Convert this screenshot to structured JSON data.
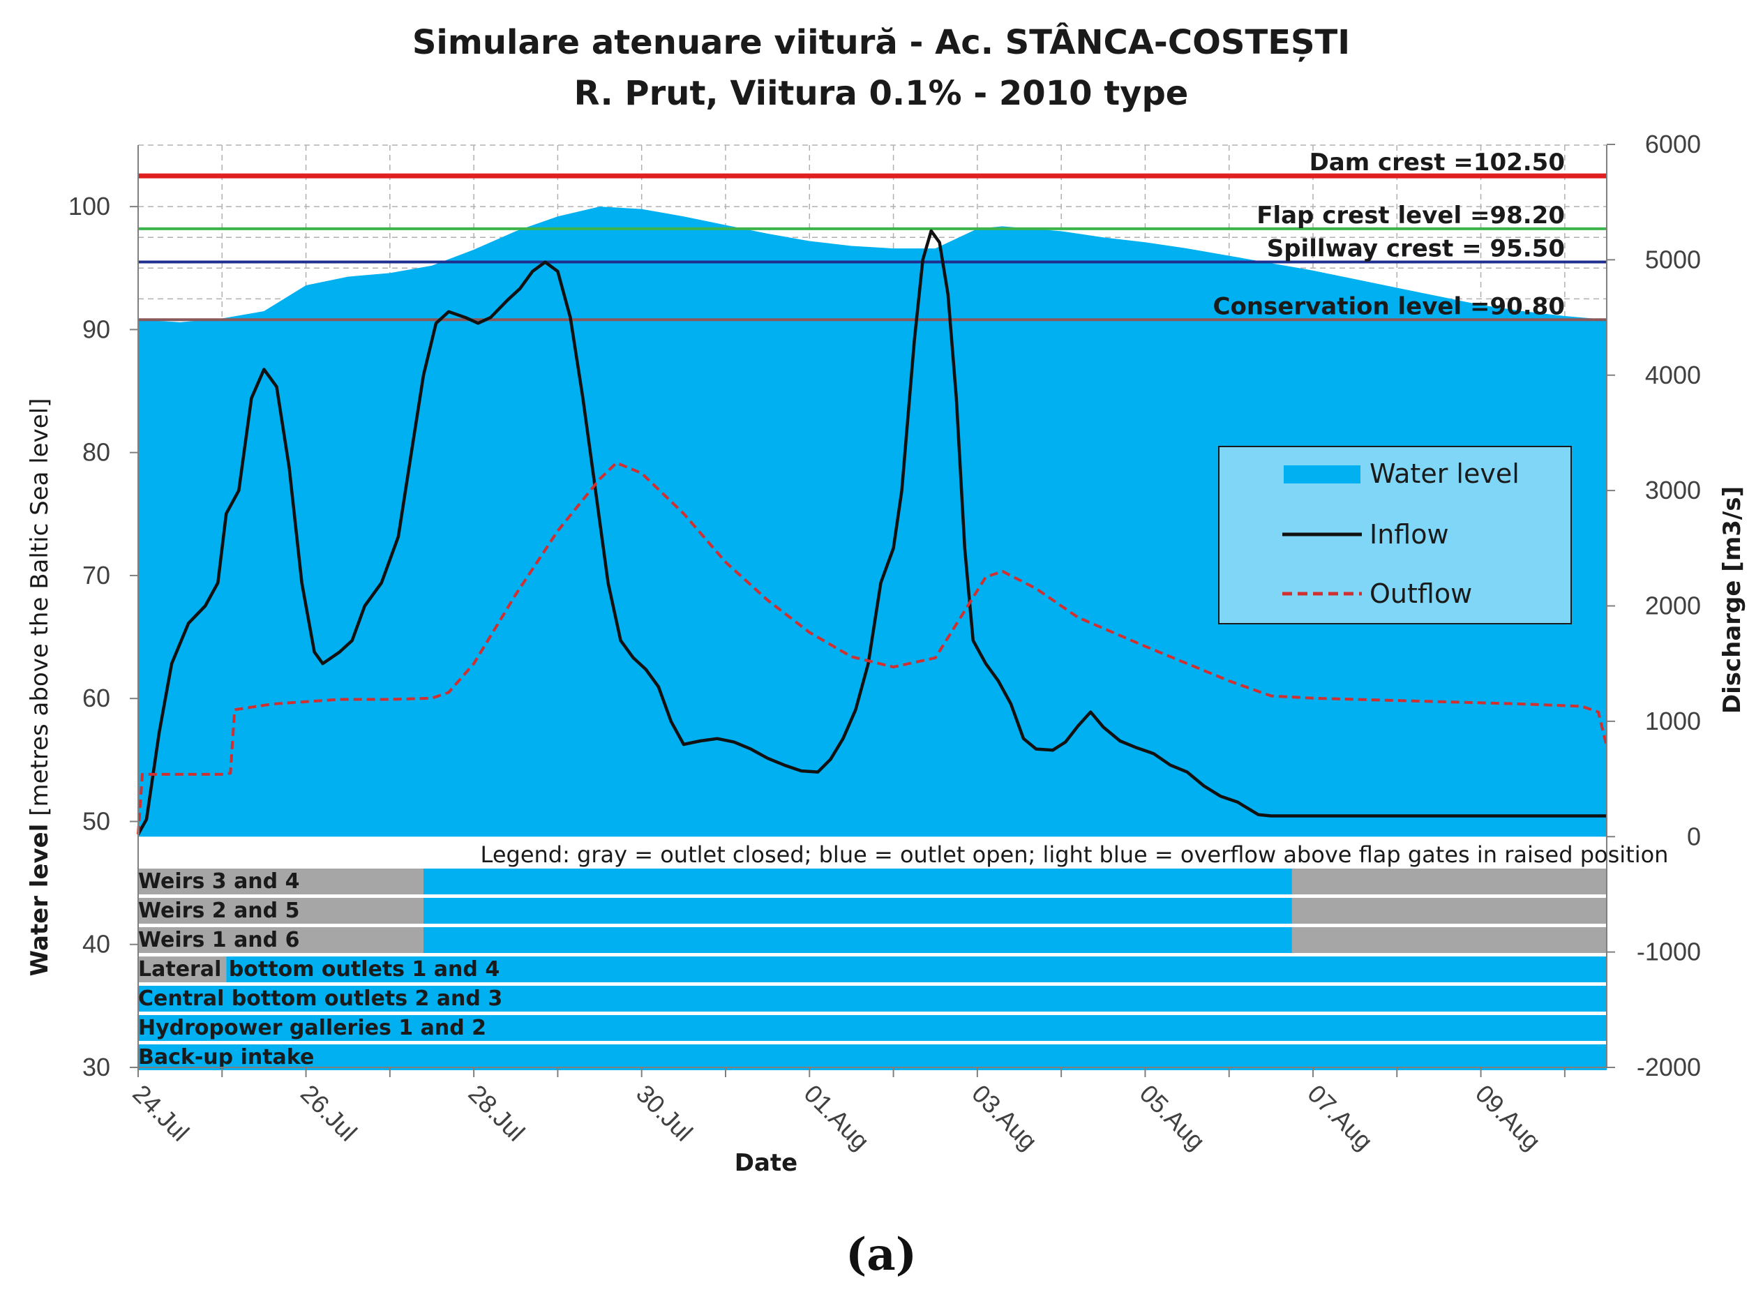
{
  "chart_data": {
    "type": "area+line",
    "title_line1": "Simulare atenuare viitură - Ac. STÂNCA-COSTEȘTI",
    "title_line2": "R. Prut,  Viitura 0.1% - 2010 type",
    "xlabel": "Date",
    "ylabel_bold": "Water level",
    "ylabel_rest": " [metres above the Baltic Sea level]",
    "y2label": "Discharge [m3/s]",
    "x_range_days": [
      0,
      17.5
    ],
    "ylim": [
      30,
      105
    ],
    "y2lim": [
      -2000,
      6000
    ],
    "x_ticks": [
      {
        "day": 0,
        "label": "24.Jul"
      },
      {
        "day": 2,
        "label": "26.Jul"
      },
      {
        "day": 4,
        "label": "28.Jul"
      },
      {
        "day": 6,
        "label": "30.Jul"
      },
      {
        "day": 8,
        "label": "01.Aug"
      },
      {
        "day": 10,
        "label": "03.Aug"
      },
      {
        "day": 12,
        "label": "05.Aug"
      },
      {
        "day": 14,
        "label": "07.Aug"
      },
      {
        "day": 16,
        "label": "09.Aug"
      }
    ],
    "y_ticks": [
      "30",
      "40",
      "50",
      "60",
      "70",
      "80",
      "90",
      "100"
    ],
    "y2_ticks": [
      "-2000",
      "-1000",
      "0",
      "1000",
      "2000",
      "3000",
      "4000",
      "5000",
      "6000"
    ],
    "reference_lines": [
      {
        "label": "Dam crest =102.50",
        "value": 102.5,
        "color": "#e02020"
      },
      {
        "label": "Flap crest level =98.20",
        "value": 98.2,
        "color": "#3cb44b"
      },
      {
        "label": "Spillway crest = 95.50",
        "value": 95.5,
        "color": "#1f2f8f"
      },
      {
        "label": "Conservation level =90.80",
        "value": 90.8,
        "color": "#8a5a5a"
      }
    ],
    "series": [
      {
        "name": "Water level",
        "axis": "left",
        "color": "#00b0f0",
        "points": [
          [
            0,
            90.8
          ],
          [
            0.5,
            90.6
          ],
          [
            1,
            90.9
          ],
          [
            1.5,
            91.5
          ],
          [
            2,
            93.6
          ],
          [
            2.5,
            94.3
          ],
          [
            3,
            94.6
          ],
          [
            3.5,
            95.2
          ],
          [
            4,
            96.5
          ],
          [
            4.5,
            98.0
          ],
          [
            5,
            99.2
          ],
          [
            5.5,
            100.0
          ],
          [
            6,
            99.8
          ],
          [
            6.5,
            99.2
          ],
          [
            7,
            98.5
          ],
          [
            7.5,
            97.8
          ],
          [
            8,
            97.2
          ],
          [
            8.5,
            96.8
          ],
          [
            9,
            96.6
          ],
          [
            9.5,
            96.6
          ],
          [
            10,
            98.2
          ],
          [
            10.3,
            98.4
          ],
          [
            11,
            98.0
          ],
          [
            11.5,
            97.5
          ],
          [
            12,
            97.1
          ],
          [
            12.5,
            96.6
          ],
          [
            13,
            96.0
          ],
          [
            13.5,
            95.4
          ],
          [
            14,
            94.8
          ],
          [
            14.5,
            94.1
          ],
          [
            15,
            93.4
          ],
          [
            15.5,
            92.7
          ],
          [
            16,
            92.0
          ],
          [
            16.5,
            91.5
          ],
          [
            17,
            91.1
          ],
          [
            17.5,
            90.8
          ]
        ]
      },
      {
        "name": "Inflow",
        "axis": "right",
        "color": "#111111",
        "points": [
          [
            0,
            20
          ],
          [
            0.1,
            150
          ],
          [
            0.25,
            900
          ],
          [
            0.4,
            1500
          ],
          [
            0.6,
            1850
          ],
          [
            0.8,
            2000
          ],
          [
            0.95,
            2200
          ],
          [
            1.05,
            2800
          ],
          [
            1.2,
            3000
          ],
          [
            1.35,
            3800
          ],
          [
            1.5,
            4050
          ],
          [
            1.65,
            3900
          ],
          [
            1.8,
            3200
          ],
          [
            1.95,
            2200
          ],
          [
            2.1,
            1600
          ],
          [
            2.2,
            1500
          ],
          [
            2.4,
            1600
          ],
          [
            2.55,
            1700
          ],
          [
            2.7,
            2000
          ],
          [
            2.9,
            2200
          ],
          [
            3.1,
            2600
          ],
          [
            3.25,
            3300
          ],
          [
            3.4,
            4000
          ],
          [
            3.55,
            4450
          ],
          [
            3.7,
            4550
          ],
          [
            3.9,
            4500
          ],
          [
            4.05,
            4450
          ],
          [
            4.2,
            4500
          ],
          [
            4.4,
            4650
          ],
          [
            4.55,
            4750
          ],
          [
            4.7,
            4900
          ],
          [
            4.85,
            4980
          ],
          [
            5.0,
            4900
          ],
          [
            5.15,
            4500
          ],
          [
            5.3,
            3800
          ],
          [
            5.45,
            3000
          ],
          [
            5.6,
            2200
          ],
          [
            5.75,
            1700
          ],
          [
            5.9,
            1550
          ],
          [
            6.05,
            1450
          ],
          [
            6.2,
            1300
          ],
          [
            6.35,
            1000
          ],
          [
            6.5,
            800
          ],
          [
            6.7,
            830
          ],
          [
            6.9,
            850
          ],
          [
            7.1,
            820
          ],
          [
            7.3,
            760
          ],
          [
            7.5,
            680
          ],
          [
            7.7,
            620
          ],
          [
            7.9,
            570
          ],
          [
            8.1,
            560
          ],
          [
            8.25,
            670
          ],
          [
            8.4,
            850
          ],
          [
            8.55,
            1100
          ],
          [
            8.7,
            1500
          ],
          [
            8.85,
            2200
          ],
          [
            9.0,
            2500
          ],
          [
            9.1,
            3000
          ],
          [
            9.25,
            4300
          ],
          [
            9.35,
            5000
          ],
          [
            9.45,
            5250
          ],
          [
            9.55,
            5150
          ],
          [
            9.65,
            4700
          ],
          [
            9.75,
            3800
          ],
          [
            9.85,
            2500
          ],
          [
            9.95,
            1700
          ],
          [
            10.1,
            1500
          ],
          [
            10.25,
            1350
          ],
          [
            10.4,
            1150
          ],
          [
            10.55,
            850
          ],
          [
            10.7,
            760
          ],
          [
            10.9,
            750
          ],
          [
            11.05,
            820
          ],
          [
            11.2,
            960
          ],
          [
            11.35,
            1080
          ],
          [
            11.5,
            950
          ],
          [
            11.7,
            830
          ],
          [
            11.9,
            770
          ],
          [
            12.1,
            720
          ],
          [
            12.3,
            620
          ],
          [
            12.5,
            560
          ],
          [
            12.7,
            440
          ],
          [
            12.9,
            350
          ],
          [
            13.1,
            300
          ],
          [
            13.35,
            190
          ],
          [
            13.5,
            180
          ],
          [
            17.5,
            180
          ]
        ]
      },
      {
        "name": "Outflow",
        "axis": "right",
        "color": "#d03030",
        "style": "dashed",
        "points": [
          [
            0,
            20
          ],
          [
            0.05,
            540
          ],
          [
            1.0,
            540
          ],
          [
            1.1,
            550
          ],
          [
            1.15,
            1100
          ],
          [
            1.6,
            1150
          ],
          [
            2.4,
            1190
          ],
          [
            3.0,
            1190
          ],
          [
            3.5,
            1200
          ],
          [
            3.7,
            1250
          ],
          [
            4.0,
            1500
          ],
          [
            4.5,
            2100
          ],
          [
            5.0,
            2650
          ],
          [
            5.5,
            3100
          ],
          [
            5.7,
            3240
          ],
          [
            6.0,
            3150
          ],
          [
            6.5,
            2800
          ],
          [
            7.0,
            2380
          ],
          [
            7.5,
            2050
          ],
          [
            8.0,
            1770
          ],
          [
            8.5,
            1560
          ],
          [
            9.0,
            1470
          ],
          [
            9.5,
            1550
          ],
          [
            9.8,
            1900
          ],
          [
            10.1,
            2250
          ],
          [
            10.3,
            2300
          ],
          [
            10.7,
            2150
          ],
          [
            11.2,
            1900
          ],
          [
            12.0,
            1650
          ],
          [
            12.5,
            1500
          ],
          [
            13.0,
            1350
          ],
          [
            13.5,
            1220
          ],
          [
            14.0,
            1200
          ],
          [
            15.0,
            1180
          ],
          [
            16.0,
            1160
          ],
          [
            16.5,
            1150
          ],
          [
            17.2,
            1130
          ],
          [
            17.4,
            1080
          ],
          [
            17.5,
            780
          ]
        ]
      }
    ],
    "legend": {
      "position": "center-right",
      "entries": [
        "Water level",
        "Inflow",
        "Outflow"
      ]
    },
    "gate_note": "Legend: gray = outlet closed; blue = outlet open; light blue = overflow above flap gates in raised position",
    "gate_colors": {
      "closed": "#a6a6a6",
      "open": "#00b0f0"
    },
    "gates": [
      {
        "label": "Weirs 3 and 4",
        "segments": [
          [
            "closed",
            0,
            3.4
          ],
          [
            "open",
            3.4,
            13.75
          ],
          [
            "closed",
            13.75,
            17.5
          ]
        ]
      },
      {
        "label": "Weirs 2 and 5",
        "segments": [
          [
            "closed",
            0,
            3.4
          ],
          [
            "open",
            3.4,
            13.75
          ],
          [
            "closed",
            13.75,
            17.5
          ]
        ]
      },
      {
        "label": "Weirs 1 and 6",
        "segments": [
          [
            "closed",
            0,
            3.4
          ],
          [
            "open",
            3.4,
            13.75
          ],
          [
            "closed",
            13.75,
            17.5
          ]
        ]
      },
      {
        "label": "Lateral bottom outlets 1 and 4",
        "segments": [
          [
            "closed",
            0,
            1.05
          ],
          [
            "open",
            1.05,
            17.5
          ]
        ]
      },
      {
        "label": "Central bottom outlets 2 and 3",
        "segments": [
          [
            "open",
            0,
            17.5
          ]
        ]
      },
      {
        "label": "Hydropower galleries 1 and 2",
        "segments": [
          [
            "open",
            0,
            17.5
          ]
        ]
      },
      {
        "label": "Back-up intake",
        "segments": [
          [
            "open",
            0,
            17.5
          ]
        ]
      }
    ]
  },
  "panel_label": "(a)"
}
